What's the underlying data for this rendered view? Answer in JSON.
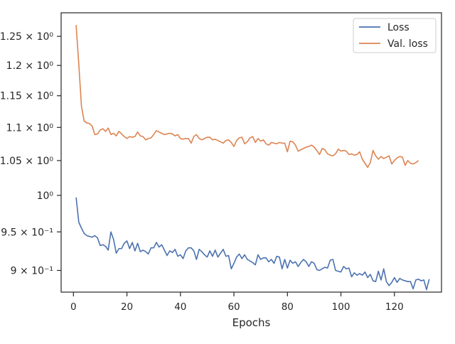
{
  "chart_data": {
    "type": "line",
    "title": "",
    "xlabel": "Epochs",
    "ylabel": "",
    "yscale": "log",
    "xlim": [
      -4.6,
      137.6
    ],
    "ylim": [
      0.873,
      1.292
    ],
    "grid": false,
    "legend_position": "top-right",
    "x_ticks": [
      {
        "value": 0,
        "label": "0"
      },
      {
        "value": 20,
        "label": "20"
      },
      {
        "value": 40,
        "label": "40"
      },
      {
        "value": 60,
        "label": "60"
      },
      {
        "value": 80,
        "label": "80"
      },
      {
        "value": 100,
        "label": "100"
      },
      {
        "value": 120,
        "label": "120"
      }
    ],
    "y_ticks": [
      {
        "value": 0.9,
        "label": "9 × 10⁻¹"
      },
      {
        "value": 0.95,
        "label": "9.5 × 10⁻¹"
      },
      {
        "value": 1.0,
        "label": "10⁰"
      },
      {
        "value": 1.05,
        "label": "1.05 × 10⁰"
      },
      {
        "value": 1.1,
        "label": "1.1 × 10⁰"
      },
      {
        "value": 1.15,
        "label": "1.15 × 10⁰"
      },
      {
        "value": 1.2,
        "label": "1.2 × 10⁰"
      },
      {
        "value": 1.25,
        "label": "1.25 × 10⁰"
      }
    ],
    "series": [
      {
        "name": "Loss",
        "color": "#4c72b0",
        "x_start": 1,
        "x_step": 1,
        "values": [
          0.997,
          0.963,
          0.955,
          0.948,
          0.945,
          0.944,
          0.943,
          0.945,
          0.942,
          0.932,
          0.933,
          0.931,
          0.926,
          0.95,
          0.94,
          0.922,
          0.928,
          0.928,
          0.935,
          0.938,
          0.928,
          0.936,
          0.925,
          0.935,
          0.924,
          0.926,
          0.924,
          0.921,
          0.929,
          0.929,
          0.936,
          0.93,
          0.933,
          0.926,
          0.919,
          0.925,
          0.923,
          0.927,
          0.918,
          0.92,
          0.915,
          0.925,
          0.929,
          0.929,
          0.925,
          0.914,
          0.927,
          0.924,
          0.92,
          0.917,
          0.925,
          0.918,
          0.926,
          0.917,
          0.922,
          0.927,
          0.918,
          0.919,
          0.902,
          0.909,
          0.917,
          0.921,
          0.915,
          0.92,
          0.914,
          0.912,
          0.91,
          0.907,
          0.92,
          0.914,
          0.916,
          0.916,
          0.911,
          0.914,
          0.909,
          0.918,
          0.917,
          0.902,
          0.914,
          0.903,
          0.913,
          0.909,
          0.911,
          0.905,
          0.91,
          0.914,
          0.911,
          0.905,
          0.911,
          0.909,
          0.901,
          0.9,
          0.902,
          0.904,
          0.903,
          0.913,
          0.914,
          0.9,
          0.899,
          0.898,
          0.905,
          0.902,
          0.903,
          0.892,
          0.897,
          0.894,
          0.896,
          0.894,
          0.898,
          0.891,
          0.895,
          0.887,
          0.886,
          0.899,
          0.888,
          0.902,
          0.886,
          0.881,
          0.885,
          0.891,
          0.885,
          0.89,
          0.888,
          0.887,
          0.886,
          0.886,
          0.877,
          0.888,
          0.889,
          0.887,
          0.888,
          0.876,
          0.889
        ]
      },
      {
        "name": "Val. loss",
        "color": "#dd8452",
        "x_start": 1,
        "x_step": 1,
        "values": [
          1.27,
          1.202,
          1.133,
          1.11,
          1.107,
          1.106,
          1.102,
          1.089,
          1.09,
          1.096,
          1.098,
          1.094,
          1.099,
          1.089,
          1.091,
          1.087,
          1.094,
          1.09,
          1.086,
          1.083,
          1.086,
          1.085,
          1.086,
          1.093,
          1.087,
          1.086,
          1.081,
          1.083,
          1.084,
          1.089,
          1.095,
          1.093,
          1.091,
          1.089,
          1.09,
          1.091,
          1.09,
          1.087,
          1.089,
          1.083,
          1.082,
          1.083,
          1.083,
          1.076,
          1.086,
          1.089,
          1.083,
          1.081,
          1.083,
          1.085,
          1.085,
          1.081,
          1.082,
          1.08,
          1.078,
          1.076,
          1.08,
          1.081,
          1.077,
          1.071,
          1.08,
          1.084,
          1.085,
          1.075,
          1.078,
          1.084,
          1.086,
          1.077,
          1.083,
          1.079,
          1.081,
          1.075,
          1.073,
          1.077,
          1.076,
          1.075,
          1.077,
          1.076,
          1.076,
          1.063,
          1.079,
          1.078,
          1.073,
          1.064,
          1.066,
          1.068,
          1.07,
          1.071,
          1.073,
          1.07,
          1.065,
          1.059,
          1.068,
          1.066,
          1.06,
          1.058,
          1.057,
          1.06,
          1.067,
          1.064,
          1.065,
          1.064,
          1.059,
          1.06,
          1.058,
          1.059,
          1.063,
          1.052,
          1.046,
          1.04,
          1.047,
          1.065,
          1.057,
          1.052,
          1.056,
          1.053,
          1.055,
          1.057,
          1.045,
          1.05,
          1.054,
          1.056,
          1.055,
          1.043,
          1.05,
          1.046,
          1.045,
          1.047,
          1.05
        ]
      }
    ]
  }
}
